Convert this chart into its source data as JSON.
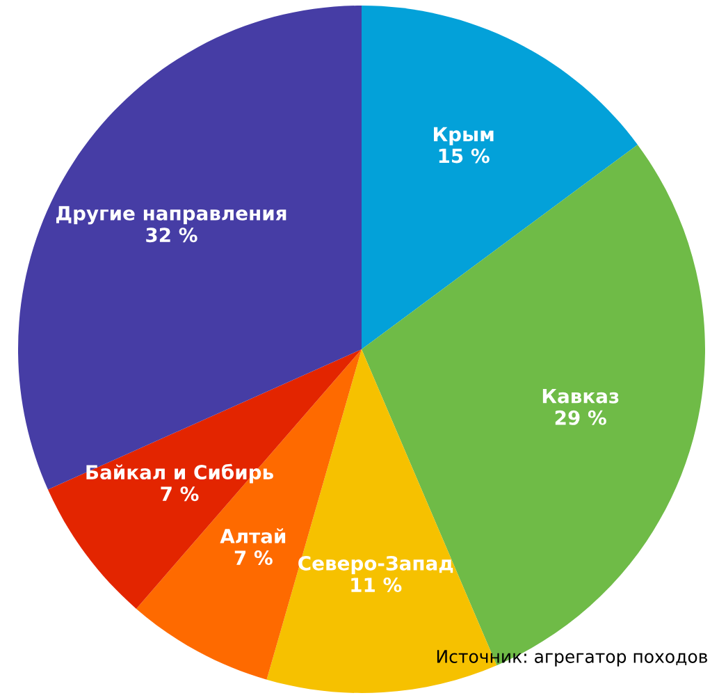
{
  "chart_data": {
    "type": "pie",
    "categories": [
      "Крым",
      "Кавказ",
      "Северо-Запад",
      "Алтай",
      "Байкал и Сибирь",
      "Другие направления"
    ],
    "values": [
      15,
      29,
      11,
      7,
      7,
      32
    ],
    "value_labels": [
      "15 %",
      "29 %",
      "11 %",
      "7 %",
      "7 %",
      "32 %"
    ],
    "colors": [
      "#03a1d9",
      "#6fbb47",
      "#f6c100",
      "#fe6a00",
      "#e32500",
      "#463da5"
    ],
    "annotations": [
      "Источник: агрегатор походов"
    ]
  }
}
